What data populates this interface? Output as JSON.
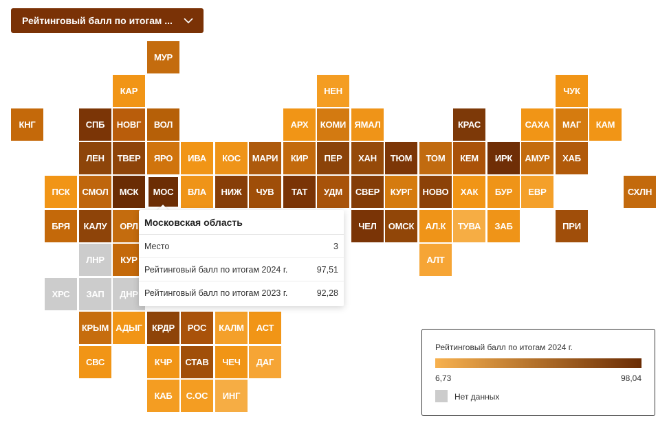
{
  "dropdown": {
    "label": "Рейтинговый балл по итогам ..."
  },
  "colors": {
    "brand": "#7a3206",
    "no_data": "#cccccc",
    "scale_low": "#f7b14f",
    "scale_high": "#6a2c04"
  },
  "tiles": [
    {
      "code": "МУР",
      "c": "#c46c0e"
    },
    {
      "code": "КАР",
      "c": "#f19516"
    },
    {
      "code": "НЕН",
      "c": "#f49d22"
    },
    {
      "code": "ЧУК",
      "c": "#f19516"
    },
    {
      "code": "КНГ",
      "c": "#c4690a"
    },
    {
      "code": "СПБ",
      "c": "#7b3506"
    },
    {
      "code": "НОВГ",
      "c": "#b95d0b"
    },
    {
      "code": "ВОЛ",
      "c": "#b66008"
    },
    {
      "code": "АРХ",
      "c": "#f19516"
    },
    {
      "code": "КОМИ",
      "c": "#d37a11"
    },
    {
      "code": "ЯМАЛ",
      "c": "#ef9418"
    },
    {
      "code": "КРАС",
      "c": "#7d3908"
    },
    {
      "code": "САХА",
      "c": "#f19516"
    },
    {
      "code": "МАГ",
      "c": "#d57b0f"
    },
    {
      "code": "КАМ",
      "c": "#f19516"
    },
    {
      "code": "ЛЕН",
      "c": "#8d450a"
    },
    {
      "code": "ТВЕР",
      "c": "#8e4409"
    },
    {
      "code": "ЯРО",
      "c": "#d0740d"
    },
    {
      "code": "ИВА",
      "c": "#f19516"
    },
    {
      "code": "КОС",
      "c": "#ef9418"
    },
    {
      "code": "МАРИ",
      "c": "#ad5a0d"
    },
    {
      "code": "КИР",
      "c": "#c36a0d"
    },
    {
      "code": "ПЕР",
      "c": "#8b4309"
    },
    {
      "code": "ХАН",
      "c": "#954a09"
    },
    {
      "code": "ТЮМ",
      "c": "#7c3607"
    },
    {
      "code": "ТОМ",
      "c": "#c16b10"
    },
    {
      "code": "КЕМ",
      "c": "#aa5209"
    },
    {
      "code": "ИРК",
      "c": "#6f2e06"
    },
    {
      "code": "АМУР",
      "c": "#c46c0e"
    },
    {
      "code": "ХАБ",
      "c": "#b15a0a"
    },
    {
      "code": "ПСК",
      "c": "#f19516"
    },
    {
      "code": "СМОЛ",
      "c": "#bf660d"
    },
    {
      "code": "МСК",
      "c": "#6a2c04"
    },
    {
      "code": "МОС",
      "c": "#6c2d04"
    },
    {
      "code": "ВЛА",
      "c": "#ef9418"
    },
    {
      "code": "НИЖ",
      "c": "#873e08"
    },
    {
      "code": "ЧУВ",
      "c": "#9f4e09"
    },
    {
      "code": "ТАТ",
      "c": "#7a3406"
    },
    {
      "code": "УДМ",
      "c": "#a8530a"
    },
    {
      "code": "СВЕР",
      "c": "#843d07"
    },
    {
      "code": "КУРГ",
      "c": "#d57b0f"
    },
    {
      "code": "НОВО",
      "c": "#8c4208"
    },
    {
      "code": "ХАК",
      "c": "#f19516"
    },
    {
      "code": "БУР",
      "c": "#ef9418"
    },
    {
      "code": "ЕВР",
      "c": "#f4a02a"
    },
    {
      "code": "СХЛН",
      "c": "#c36a0d"
    },
    {
      "code": "БРЯ",
      "c": "#c4690a"
    },
    {
      "code": "КАЛУ",
      "c": "#8e4409"
    },
    {
      "code": "ОРЛ",
      "c": "#c46c0e"
    },
    {
      "code": "ЧЕЛ",
      "c": "#7a3406"
    },
    {
      "code": "ОМСК",
      "c": "#914608"
    },
    {
      "code": "АЛ.К",
      "c": "#ef9418"
    },
    {
      "code": "ТУВА",
      "c": "#f6ad44"
    },
    {
      "code": "ЗАБ",
      "c": "#ef9418"
    },
    {
      "code": "ПРИ",
      "c": "#a04e0a"
    },
    {
      "code": "ЛНР",
      "c": "#cccccc"
    },
    {
      "code": "КУР",
      "c": "#c4690a"
    },
    {
      "code": "АЛТ",
      "c": "#f6a535"
    },
    {
      "code": "ХРС",
      "c": "#cccccc"
    },
    {
      "code": "ЗАП",
      "c": "#cccccc"
    },
    {
      "code": "ДНР",
      "c": "#cccccc"
    },
    {
      "code": "КРЫМ",
      "c": "#c66d0e"
    },
    {
      "code": "АДЫГ",
      "c": "#f19516"
    },
    {
      "code": "КРДР",
      "c": "#8e4409"
    },
    {
      "code": "РОС",
      "c": "#a9520a"
    },
    {
      "code": "КАЛМ",
      "c": "#f4a02a"
    },
    {
      "code": "АСТ",
      "c": "#f19516"
    },
    {
      "code": "СВС",
      "c": "#f19516"
    },
    {
      "code": "КЧР",
      "c": "#f19516"
    },
    {
      "code": "СТАВ",
      "c": "#a14f09"
    },
    {
      "code": "ЧЕЧ",
      "c": "#f19516"
    },
    {
      "code": "ДАГ",
      "c": "#f6a535"
    },
    {
      "code": "КАБ",
      "c": "#f49d22"
    },
    {
      "code": "С.ОС",
      "c": "#f49d22"
    },
    {
      "code": "ИНГ",
      "c": "#f6ad44"
    }
  ],
  "tooltip": {
    "title": "Московская область",
    "rows": [
      {
        "label": "Место",
        "value": "3"
      },
      {
        "label": "Рейтинговый балл по итогам 2024 г.",
        "value": "97,51"
      },
      {
        "label": "Рейтинговый балл по итогам 2023 г.",
        "value": "92,28"
      }
    ]
  },
  "legend": {
    "title": "Рейтинговый балл по итогам 2024 г.",
    "min": "6,73",
    "max": "98,04",
    "no_data_label": "Нет данных"
  }
}
